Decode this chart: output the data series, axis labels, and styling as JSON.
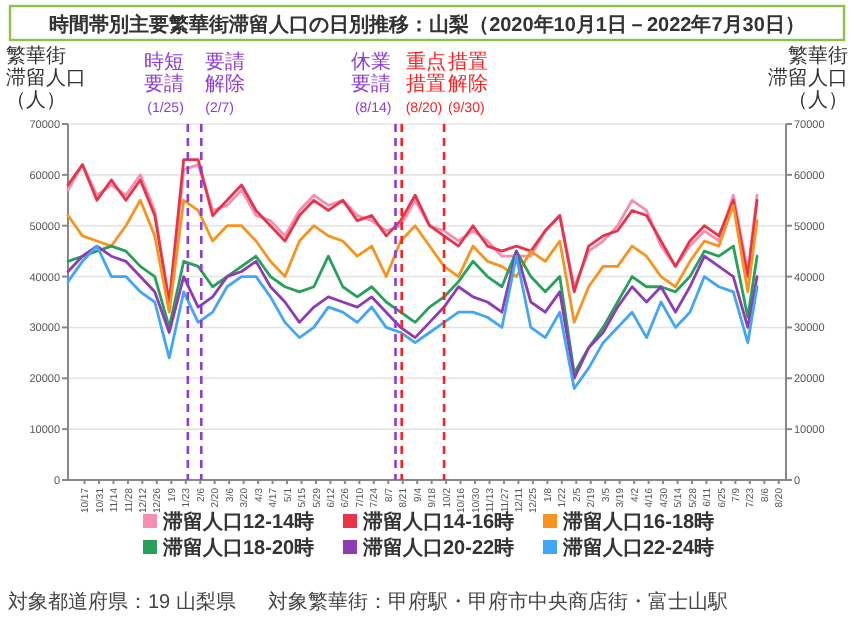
{
  "chart_data": {
    "type": "line",
    "title": "時間帯別主要繁華街滞留人口の日別推移：山梨（2020年10月1日－2022年7月30日）",
    "ylabel": "繁華街滞留人口（人）",
    "y2label": "繁華街滞留人口（人）",
    "x": [
      "2020-10-01",
      "2020-10-15",
      "2020-10-29",
      "2020-11-12",
      "2020-11-26",
      "2020-12-10",
      "2020-12-24",
      "2021-01-07",
      "2021-01-21",
      "2021-02-04",
      "2021-02-18",
      "2021-03-04",
      "2021-03-18",
      "2021-04-01",
      "2021-04-15",
      "2021-04-29",
      "2021-05-13",
      "2021-05-27",
      "2021-06-10",
      "2021-06-24",
      "2021-07-08",
      "2021-07-22",
      "2021-08-05",
      "2021-08-19",
      "2021-09-02",
      "2021-09-16",
      "2021-09-30",
      "2021-10-14",
      "2021-10-28",
      "2021-11-11",
      "2021-11-25",
      "2021-12-09",
      "2021-12-23",
      "2022-01-06",
      "2022-01-20",
      "2022-02-03",
      "2022-02-17",
      "2022-03-03",
      "2022-03-17",
      "2022-03-31",
      "2022-04-14",
      "2022-04-28",
      "2022-05-12",
      "2022-05-26",
      "2022-06-09",
      "2022-06-23",
      "2022-07-07",
      "2022-07-21",
      "2022-07-30"
    ],
    "series": [
      {
        "name": "滞留人口12-14時",
        "color": "#f48fb1",
        "values": [
          57000,
          62000,
          56000,
          58000,
          56000,
          60000,
          53000,
          34000,
          61000,
          62000,
          53000,
          54000,
          57000,
          52000,
          51000,
          48000,
          53000,
          56000,
          54000,
          55000,
          52000,
          51000,
          49000,
          50000,
          55000,
          50000,
          49000,
          47000,
          49000,
          47000,
          44000,
          44000,
          44000,
          49000,
          52000,
          38000,
          45000,
          47000,
          50000,
          55000,
          53000,
          46000,
          42000,
          46000,
          49000,
          47000,
          56000,
          41000,
          56000
        ]
      },
      {
        "name": "滞留人口14-16時",
        "color": "#e8334a",
        "values": [
          58000,
          62000,
          55000,
          59000,
          55000,
          59000,
          52000,
          35000,
          63000,
          63000,
          52000,
          55000,
          58000,
          53000,
          50000,
          47000,
          52000,
          55000,
          53000,
          55000,
          51000,
          52000,
          48000,
          51000,
          56000,
          50000,
          48000,
          46000,
          50000,
          46000,
          45000,
          46000,
          45000,
          49000,
          52000,
          37000,
          46000,
          48000,
          49000,
          53000,
          52000,
          47000,
          42000,
          47000,
          50000,
          48000,
          55000,
          40000,
          55000
        ]
      },
      {
        "name": "滞留人口16-18時",
        "color": "#f7941d",
        "values": [
          52000,
          48000,
          47000,
          46000,
          50000,
          55000,
          48000,
          33000,
          55000,
          53000,
          47000,
          50000,
          50000,
          47000,
          43000,
          40000,
          47000,
          50000,
          48000,
          47000,
          44000,
          46000,
          40000,
          47000,
          50000,
          46000,
          42000,
          40000,
          46000,
          43000,
          42000,
          40000,
          45000,
          43000,
          47000,
          31000,
          38000,
          42000,
          42000,
          46000,
          44000,
          40000,
          38000,
          43000,
          47000,
          46000,
          54000,
          37000,
          51000
        ]
      },
      {
        "name": "滞留人口18-20時",
        "color": "#27a05a",
        "values": [
          43000,
          44000,
          45000,
          46000,
          45000,
          42000,
          40000,
          30000,
          43000,
          42000,
          38000,
          40000,
          42000,
          44000,
          40000,
          38000,
          37000,
          38000,
          44000,
          38000,
          36000,
          38000,
          35000,
          33000,
          31000,
          34000,
          36000,
          39000,
          43000,
          40000,
          38000,
          45000,
          40000,
          37000,
          40000,
          21000,
          26000,
          30000,
          35000,
          40000,
          38000,
          38000,
          37000,
          40000,
          45000,
          44000,
          46000,
          32000,
          44000
        ]
      },
      {
        "name": "滞留人口20-22時",
        "color": "#8e3bb5",
        "values": [
          41000,
          44000,
          46000,
          44000,
          43000,
          40000,
          37000,
          29000,
          40000,
          34000,
          36000,
          40000,
          41000,
          43000,
          38000,
          35000,
          31000,
          34000,
          36000,
          35000,
          34000,
          36000,
          33000,
          30000,
          28000,
          31000,
          34000,
          38000,
          36000,
          35000,
          33000,
          45000,
          35000,
          33000,
          37000,
          20000,
          26000,
          29000,
          34000,
          38000,
          35000,
          38000,
          33000,
          38000,
          44000,
          42000,
          40000,
          30000,
          40000
        ]
      },
      {
        "name": "滞留人口22-24時",
        "color": "#42a5f5",
        "values": [
          39000,
          43000,
          46000,
          40000,
          40000,
          37000,
          35000,
          24000,
          37000,
          31000,
          33000,
          38000,
          40000,
          40000,
          36000,
          31000,
          28000,
          30000,
          34000,
          33000,
          31000,
          34000,
          30000,
          29000,
          27000,
          29000,
          31000,
          33000,
          33000,
          32000,
          30000,
          44000,
          30000,
          28000,
          33000,
          18000,
          22000,
          27000,
          30000,
          33000,
          28000,
          35000,
          30000,
          33000,
          40000,
          38000,
          37000,
          27000,
          38000
        ]
      }
    ],
    "xlim": [
      "2020-10-01",
      "2022-08-27"
    ],
    "xticks": [
      {
        "value": "2020-10-17",
        "label": "10/17"
      },
      {
        "value": "2020-10-31",
        "label": "10/31"
      },
      {
        "value": "2020-11-14",
        "label": "11/14"
      },
      {
        "value": "2020-11-28",
        "label": "11/28"
      },
      {
        "value": "2020-12-12",
        "label": "12/12"
      },
      {
        "value": "2020-12-26",
        "label": "12/26"
      },
      {
        "value": "2021-01-09",
        "label": "1/9"
      },
      {
        "value": "2021-01-23",
        "label": "1/23"
      },
      {
        "value": "2021-02-06",
        "label": "2/6"
      },
      {
        "value": "2021-02-20",
        "label": "2/20"
      },
      {
        "value": "2021-03-06",
        "label": "3/6"
      },
      {
        "value": "2021-03-20",
        "label": "3/20"
      },
      {
        "value": "2021-04-03",
        "label": "4/3"
      },
      {
        "value": "2021-04-17",
        "label": "4/17"
      },
      {
        "value": "2021-05-01",
        "label": "5/1"
      },
      {
        "value": "2021-05-15",
        "label": "5/15"
      },
      {
        "value": "2021-05-29",
        "label": "5/29"
      },
      {
        "value": "2021-06-12",
        "label": "6/12"
      },
      {
        "value": "2021-06-26",
        "label": "6/26"
      },
      {
        "value": "2021-07-10",
        "label": "7/10"
      },
      {
        "value": "2021-07-24",
        "label": "7/24"
      },
      {
        "value": "2021-08-07",
        "label": "8/7"
      },
      {
        "value": "2021-08-21",
        "label": "8/21"
      },
      {
        "value": "2021-09-04",
        "label": "9/4"
      },
      {
        "value": "2021-09-18",
        "label": "9/18"
      },
      {
        "value": "2021-10-02",
        "label": "10/2"
      },
      {
        "value": "2021-10-16",
        "label": "10/16"
      },
      {
        "value": "2021-10-30",
        "label": "10/30"
      },
      {
        "value": "2021-11-13",
        "label": "11/13"
      },
      {
        "value": "2021-11-27",
        "label": "11/27"
      },
      {
        "value": "2021-12-11",
        "label": "12/11"
      },
      {
        "value": "2021-12-25",
        "label": "12/25"
      },
      {
        "value": "2022-01-08",
        "label": "1/8"
      },
      {
        "value": "2022-01-22",
        "label": "1/22"
      },
      {
        "value": "2022-02-05",
        "label": "2/5"
      },
      {
        "value": "2022-02-19",
        "label": "2/19"
      },
      {
        "value": "2022-03-05",
        "label": "3/5"
      },
      {
        "value": "2022-03-19",
        "label": "3/19"
      },
      {
        "value": "2022-04-02",
        "label": "4/2"
      },
      {
        "value": "2022-04-16",
        "label": "4/16"
      },
      {
        "value": "2022-04-30",
        "label": "4/30"
      },
      {
        "value": "2022-05-14",
        "label": "5/14"
      },
      {
        "value": "2022-05-28",
        "label": "5/28"
      },
      {
        "value": "2022-06-11",
        "label": "6/11"
      },
      {
        "value": "2022-06-25",
        "label": "6/25"
      },
      {
        "value": "2022-07-09",
        "label": "7/9"
      },
      {
        "value": "2022-07-23",
        "label": "7/23"
      },
      {
        "value": "2022-08-06",
        "label": "8/6"
      },
      {
        "value": "2022-08-20",
        "label": "8/20"
      }
    ],
    "ylim": [
      0,
      70000
    ],
    "yticks": [
      0,
      10000,
      20000,
      30000,
      40000,
      50000,
      60000,
      70000
    ],
    "y2lim": [
      0,
      70000
    ],
    "y2ticks": [
      0,
      10000,
      20000,
      30000,
      40000,
      50000,
      60000,
      70000
    ],
    "grid": "y",
    "legend": "bottom",
    "ref_lines": [
      {
        "axis": "x",
        "value": "2021-01-25",
        "label": "時短要請(1/25)",
        "color": "#8e3bd8",
        "line_style": "dashed"
      },
      {
        "axis": "x",
        "value": "2021-02-07",
        "label": "要請解除(2/7)",
        "color": "#8e3bd8",
        "line_style": "dashed"
      },
      {
        "axis": "x",
        "value": "2021-08-14",
        "label": "休業要請(8/14)",
        "color": "#8e3bd8",
        "line_style": "dashed"
      },
      {
        "axis": "x",
        "value": "2021-08-20",
        "label": "重点措置(8/20)",
        "color": "#ff2020",
        "line_style": "dashed"
      },
      {
        "axis": "x",
        "value": "2021-09-30",
        "label": "措置解除(9/30)",
        "color": "#ff2020",
        "line_style": "dashed"
      }
    ],
    "annotations": [
      "対象都道府県：19 山梨県",
      "対象繁華街：甲府駅・甲府市中央商店街・富士山駅"
    ]
  }
}
